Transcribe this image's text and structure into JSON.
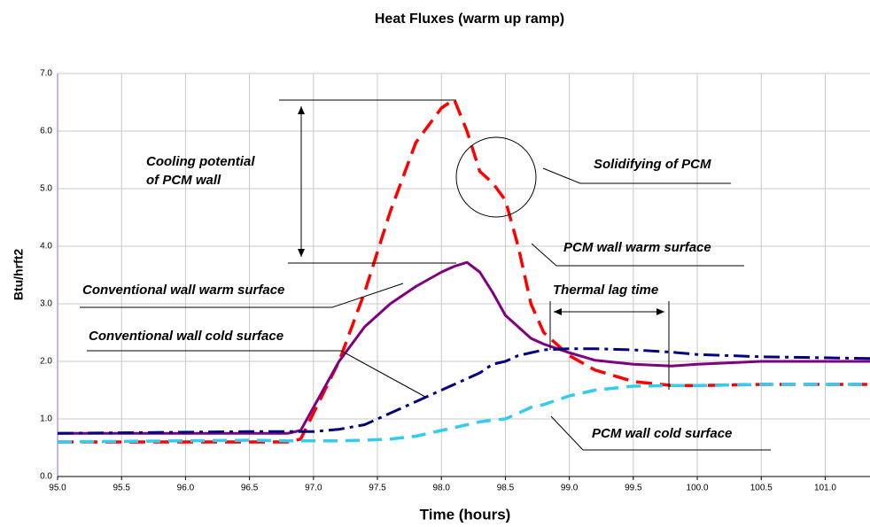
{
  "chart_data": {
    "type": "line",
    "title": "Heat Fluxes (warm up ramp)",
    "x_label": "Time (hours)",
    "y_label": "Btu/hrft2",
    "x": [
      95,
      96.5,
      96.8,
      96.9,
      97.0,
      97.2,
      97.4,
      97.6,
      97.8,
      98.0,
      98.1,
      98.2,
      98.3,
      98.4,
      98.5,
      98.6,
      98.7,
      98.8,
      99.0,
      99.2,
      99.5,
      99.8,
      100.0,
      100.5,
      101.35
    ],
    "series": [
      {
        "name": "PCM wall warm surface",
        "color": "#ff0000",
        "dash": "18 9",
        "width": 3.5,
        "values": [
          0.6,
          0.6,
          0.6,
          0.65,
          1.1,
          2.0,
          3.2,
          4.6,
          5.8,
          6.4,
          6.55,
          6.0,
          5.3,
          5.1,
          4.8,
          4.0,
          3.0,
          2.5,
          2.1,
          1.85,
          1.65,
          1.58,
          1.58,
          1.6,
          1.6
        ]
      },
      {
        "name": "Conventional wall warm surface",
        "color": "#7f007f",
        "dash": "none",
        "width": 3,
        "values": [
          0.75,
          0.75,
          0.75,
          0.8,
          1.2,
          2.0,
          2.6,
          3.0,
          3.3,
          3.55,
          3.65,
          3.72,
          3.55,
          3.2,
          2.8,
          2.6,
          2.4,
          2.3,
          2.15,
          2.02,
          1.95,
          1.92,
          1.95,
          2.0,
          2.0
        ]
      },
      {
        "name": "Conventional wall cold surface",
        "color": "#000080",
        "dash": "18 6 4 6",
        "width": 3,
        "values": [
          0.75,
          0.78,
          0.78,
          0.78,
          0.78,
          0.82,
          0.9,
          1.1,
          1.3,
          1.5,
          1.6,
          1.7,
          1.8,
          1.95,
          2.0,
          2.1,
          2.15,
          2.2,
          2.22,
          2.22,
          2.2,
          2.16,
          2.12,
          2.08,
          2.05
        ]
      },
      {
        "name": "PCM wall cold surface",
        "color": "#33ccee",
        "dash": "16 9",
        "width": 3.5,
        "values": [
          0.6,
          0.63,
          0.62,
          0.62,
          0.62,
          0.62,
          0.63,
          0.65,
          0.7,
          0.8,
          0.85,
          0.9,
          0.95,
          0.98,
          1.0,
          1.1,
          1.2,
          1.25,
          1.4,
          1.5,
          1.57,
          1.58,
          1.58,
          1.6,
          1.6
        ]
      }
    ],
    "annotations": [
      "Cooling potential",
      "of PCM  wall",
      "Solidifying of PCM",
      "Thermal lag time"
    ],
    "xlim": [
      95,
      101.35
    ],
    "xticks": [
      {
        "value": 95,
        "label": "95.0"
      },
      95.5,
      {
        "value": 96,
        "label": "96.0"
      },
      96.5,
      {
        "value": 97,
        "label": "97.0"
      },
      97.5,
      {
        "value": 98,
        "label": "98.0"
      },
      98.5,
      {
        "value": 99,
        "label": "99.0"
      },
      99.5,
      {
        "value": 100,
        "label": "100.0"
      },
      100.5,
      {
        "value": 101,
        "label": "101.0"
      }
    ],
    "ylim": [
      0,
      7
    ],
    "yticks": [
      {
        "value": 0,
        "label": "0.0"
      },
      {
        "value": 1,
        "label": "1.0"
      },
      {
        "value": 2,
        "label": "2.0"
      },
      {
        "value": 3,
        "label": "3.0"
      },
      {
        "value": 4,
        "label": "4.0"
      },
      {
        "value": 5,
        "label": "5.0"
      },
      {
        "value": 6,
        "label": "6.0"
      },
      {
        "value": 7,
        "label": "7.0"
      }
    ],
    "grid": true
  }
}
